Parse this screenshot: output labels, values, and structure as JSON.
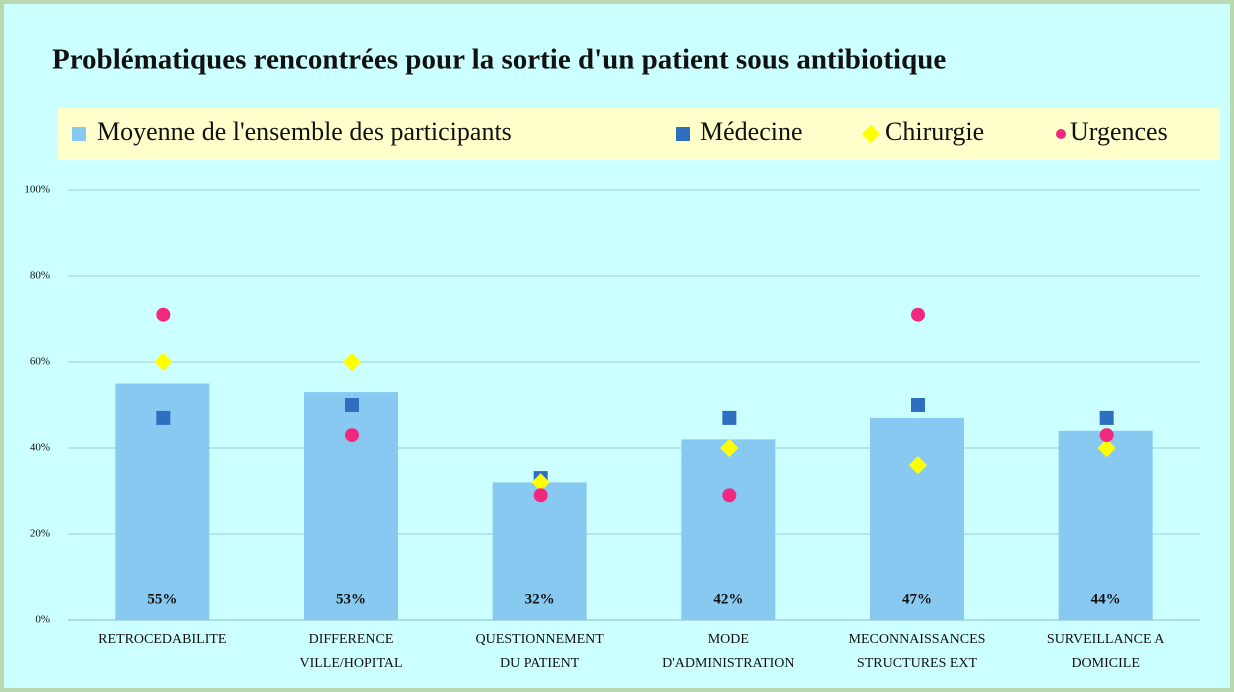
{
  "chart_data": {
    "type": "bar",
    "title": "Problématiques rencontrées pour la sortie d'un patient sous antibiotique",
    "categories": [
      [
        "RETROCEDABILITE"
      ],
      [
        "DIFFERENCE",
        "VILLE/HOPITAL"
      ],
      [
        "QUESTIONNEMENT",
        "DU PATIENT"
      ],
      [
        "MODE",
        "D'ADMINISTRATION"
      ],
      [
        "MECONNAISSANCES",
        "STRUCTURES EXT"
      ],
      [
        "SURVEILLANCE A",
        "DOMICILE"
      ]
    ],
    "series": [
      {
        "name": "Moyenne de l'ensemble des participants",
        "type": "bar",
        "color": "#88c9f2",
        "values": [
          55,
          53,
          32,
          42,
          47,
          44
        ],
        "value_labels": [
          "55%",
          "53%",
          "32%",
          "42%",
          "47%",
          "44%"
        ]
      },
      {
        "name": "Médecine",
        "type": "scatter",
        "marker": "square",
        "color": "#2e6fbf",
        "values": [
          47,
          50,
          33,
          47,
          50,
          47
        ]
      },
      {
        "name": "Chirurgie",
        "type": "scatter",
        "marker": "diamond",
        "color": "#ffff00",
        "values": [
          60,
          60,
          32,
          40,
          36,
          40
        ]
      },
      {
        "name": "Urgences",
        "type": "scatter",
        "marker": "circle",
        "color": "#f0287f",
        "values": [
          71,
          43,
          29,
          29,
          71,
          43
        ]
      }
    ],
    "ylim": [
      0,
      100
    ],
    "yticks": [
      {
        "value": 0,
        "label": "0%"
      },
      {
        "value": 20,
        "label": "20%"
      },
      {
        "value": 40,
        "label": "40%"
      },
      {
        "value": 60,
        "label": "60%"
      },
      {
        "value": 80,
        "label": "80%"
      },
      {
        "value": 100,
        "label": "100%"
      }
    ],
    "grid": true,
    "legend": "top"
  }
}
